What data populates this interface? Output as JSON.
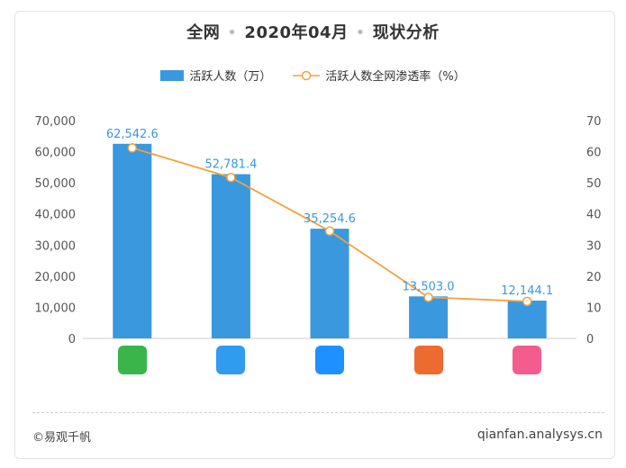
{
  "header": {
    "title_a": "全网",
    "title_b": "2020年04月",
    "title_c": "现状分析",
    "separator": "•"
  },
  "legend": {
    "bar_label": "活跃人数（万）",
    "line_label": "活跃人数全网渗透率（%）"
  },
  "footer": {
    "source": "©易观千帆",
    "site": "qianfan.analysys.cn"
  },
  "colors": {
    "bar": "#3a98de",
    "line": "#f0a23c",
    "label": "#3a98de",
    "axis_text": "#555555"
  },
  "apps": [
    {
      "icon": "iqiyi-icon",
      "color": "#39b54a"
    },
    {
      "icon": "tencent-video-icon",
      "color": "#2f9cf0"
    },
    {
      "icon": "youku-icon",
      "color": "#1e90ff"
    },
    {
      "icon": "mango-tv-icon",
      "color": "#ee6b2f"
    },
    {
      "icon": "bilibili-icon",
      "color": "#f25d8e"
    }
  ],
  "chart_data": {
    "type": "bar",
    "categories": [
      "",
      "",
      "",
      "",
      ""
    ],
    "series": [
      {
        "kind": "bar",
        "axis": "left",
        "values": [
          62542.6,
          52781.4,
          35254.6,
          13503.0,
          12144.1
        ],
        "labels": [
          "62,542.6",
          "52,781.4",
          "35,254.6",
          "13,503.0",
          "12,144.1"
        ]
      },
      {
        "kind": "line",
        "axis": "right",
        "values": [
          61.2,
          51.7,
          34.5,
          13.2,
          11.9
        ]
      }
    ],
    "ylim_left": [
      0,
      70000
    ],
    "ylim_right": [
      0,
      70
    ],
    "yticks_left": [
      "0",
      "10,000",
      "20,000",
      "30,000",
      "40,000",
      "50,000",
      "60,000",
      "70,000"
    ],
    "yticks_right": [
      "0",
      "10",
      "20",
      "30",
      "40",
      "50",
      "60",
      "70"
    ],
    "grid": false,
    "legend_position": "top-center"
  }
}
